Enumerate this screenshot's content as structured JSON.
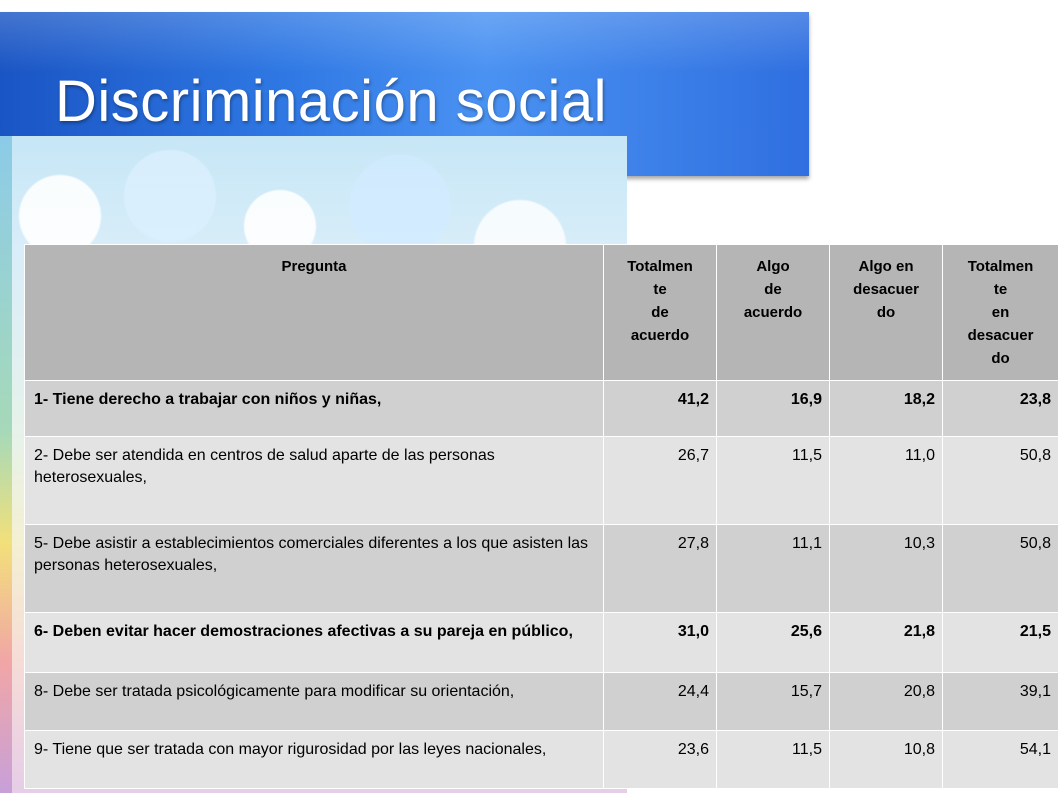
{
  "slide": {
    "title": "Discriminación social"
  },
  "table": {
    "headers": [
      "Pregunta",
      "Totalmen te de acuerdo",
      "Algo de acuerdo",
      "Algo en desacuer do",
      "Totalmen te en desacuer do"
    ],
    "header_lines": [
      [
        "Pregunta"
      ],
      [
        "Totalmen",
        "te",
        "de",
        "acuerdo"
      ],
      [
        "Algo",
        "de",
        "acuerdo"
      ],
      [
        "Algo en",
        "desacuer",
        "do"
      ],
      [
        "Totalmen",
        "te",
        "en",
        "desacuer",
        "do"
      ]
    ],
    "rows": [
      {
        "pregunta": "1- Tiene derecho a trabajar con niños y niñas,",
        "totalmente_acuerdo": "41,2",
        "algo_acuerdo": "16,9",
        "algo_desacuerdo": "18,2",
        "totalmente_desacuerdo": "23,8"
      },
      {
        "pregunta": "2- Debe ser atendida en centros de salud aparte de las personas heterosexuales,",
        "totalmente_acuerdo": "26,7",
        "algo_acuerdo": "11,5",
        "algo_desacuerdo": "11,0",
        "totalmente_desacuerdo": "50,8"
      },
      {
        "pregunta": "5- Debe asistir a establecimientos comerciales diferentes a los que asisten las personas heterosexuales,",
        "totalmente_acuerdo": "27,8",
        "algo_acuerdo": "11,1",
        "algo_desacuerdo": "10,3",
        "totalmente_desacuerdo": "50,8"
      },
      {
        "pregunta": "6- Deben evitar hacer demostraciones afectivas a su pareja en público,",
        "totalmente_acuerdo": "31,0",
        "algo_acuerdo": "25,6",
        "algo_desacuerdo": "21,8",
        "totalmente_desacuerdo": "21,5"
      },
      {
        "pregunta": "8- Debe ser tratada psicológicamente para modificar su orientación,",
        "totalmente_acuerdo": "24,4",
        "algo_acuerdo": "15,7",
        "algo_desacuerdo": "20,8",
        "totalmente_desacuerdo": "39,1"
      },
      {
        "pregunta": "9- Tiene que ser tratada con mayor rigurosidad por las leyes nacionales,",
        "totalmente_acuerdo": "23,6",
        "algo_acuerdo": "11,5",
        "algo_desacuerdo": "10,8",
        "totalmente_desacuerdo": "54,1"
      }
    ]
  }
}
